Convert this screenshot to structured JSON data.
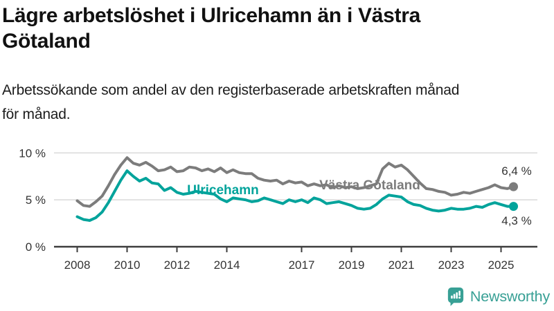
{
  "header": {
    "title_lines": [
      "Lägre arbetslöshet i Ulricehamn än i Västra",
      "Götaland"
    ],
    "subtitle_lines": [
      "Arbetssökande som andel av den registerbaserade arbetskraften månad",
      "för månad."
    ]
  },
  "chart_data": {
    "type": "line",
    "title": "Lägre arbetslöshet i Ulricehamn än i Västra Götaland",
    "subtitle": "Arbetssökande som andel av den registerbaserade arbetskraften månad för månad.",
    "x_unit": "decimal_year",
    "xlim": [
      2008,
      2025.5
    ],
    "ylim": [
      0,
      10
    ],
    "grid": "horizontal",
    "legend": "inline-labels",
    "x": [
      2008,
      2008.25,
      2008.5,
      2008.75,
      2009,
      2009.25,
      2009.5,
      2009.75,
      2010,
      2010.25,
      2010.5,
      2010.75,
      2011,
      2011.25,
      2011.5,
      2011.75,
      2012,
      2012.25,
      2012.5,
      2012.75,
      2013,
      2013.25,
      2013.5,
      2013.75,
      2014,
      2014.25,
      2014.5,
      2014.75,
      2015,
      2015.25,
      2015.5,
      2015.75,
      2016,
      2016.25,
      2016.5,
      2016.75,
      2017,
      2017.25,
      2017.5,
      2017.75,
      2018,
      2018.25,
      2018.5,
      2018.75,
      2019,
      2019.25,
      2019.5,
      2019.75,
      2020,
      2020.25,
      2020.5,
      2020.75,
      2021,
      2021.25,
      2021.5,
      2021.75,
      2022,
      2022.25,
      2022.5,
      2022.75,
      2023,
      2023.25,
      2023.5,
      2023.75,
      2024,
      2024.25,
      2024.5,
      2024.75,
      2025,
      2025.25,
      2025.5
    ],
    "series": [
      {
        "name": "Ulricehamn",
        "color": "#00a39b",
        "end_label": "4,3 %",
        "end_value": 4.3,
        "values": [
          3.2,
          2.9,
          2.8,
          3.1,
          3.7,
          4.7,
          5.9,
          7.1,
          8.1,
          7.5,
          7.0,
          7.3,
          6.8,
          6.7,
          6.0,
          6.3,
          5.8,
          5.6,
          5.7,
          5.9,
          5.8,
          5.7,
          5.6,
          5.1,
          4.8,
          5.2,
          5.1,
          5.0,
          4.8,
          4.9,
          5.2,
          5.0,
          4.8,
          4.6,
          5.0,
          4.8,
          5.0,
          4.7,
          5.2,
          5.0,
          4.6,
          4.7,
          4.8,
          4.6,
          4.4,
          4.1,
          4.0,
          4.1,
          4.5,
          5.1,
          5.5,
          5.4,
          5.3,
          4.8,
          4.5,
          4.4,
          4.1,
          3.9,
          3.8,
          3.9,
          4.1,
          4.0,
          4.0,
          4.1,
          4.3,
          4.2,
          4.5,
          4.7,
          4.5,
          4.3,
          4.3
        ]
      },
      {
        "name": "Västra Götaland",
        "color": "#7c7c7c",
        "end_label": "6,4 %",
        "end_value": 6.4,
        "values": [
          4.9,
          4.4,
          4.3,
          4.8,
          5.4,
          6.5,
          7.7,
          8.7,
          9.5,
          8.9,
          8.7,
          9.0,
          8.6,
          8.1,
          8.2,
          8.5,
          8.0,
          8.1,
          8.5,
          8.4,
          8.1,
          8.3,
          8.0,
          8.4,
          7.9,
          8.2,
          7.9,
          7.8,
          7.8,
          7.3,
          7.1,
          7.0,
          7.1,
          6.7,
          7.0,
          6.8,
          6.9,
          6.5,
          6.7,
          6.5,
          6.6,
          6.3,
          6.5,
          6.3,
          6.4,
          6.2,
          6.3,
          6.5,
          6.7,
          8.3,
          8.9,
          8.5,
          8.7,
          8.2,
          7.5,
          6.8,
          6.2,
          6.1,
          5.9,
          5.8,
          5.5,
          5.6,
          5.8,
          5.7,
          5.9,
          6.1,
          6.3,
          6.6,
          6.3,
          6.2,
          6.4
        ]
      }
    ],
    "yticks": [
      {
        "value": 0,
        "label": "0 %"
      },
      {
        "value": 5,
        "label": "5 %"
      },
      {
        "value": 10,
        "label": "10 %"
      }
    ],
    "xticks": [
      {
        "value": 2008,
        "label": "2008"
      },
      {
        "value": 2010,
        "label": "2010"
      },
      {
        "value": 2012,
        "label": "2012"
      },
      {
        "value": 2014,
        "label": "2014"
      },
      {
        "value": 2017,
        "label": "2017"
      },
      {
        "value": 2019,
        "label": "2019"
      },
      {
        "value": 2021,
        "label": "2021"
      },
      {
        "value": 2023,
        "label": "2023"
      },
      {
        "value": 2025,
        "label": "2025"
      }
    ]
  },
  "colors": {
    "teal": "#00a39b",
    "gray": "#7c7c7c",
    "axis": "#3d3d3d",
    "grid": "#dadada",
    "text": "#333333",
    "logo_teal": "#38a095"
  },
  "footer": {
    "brand": "Newsworthy"
  }
}
